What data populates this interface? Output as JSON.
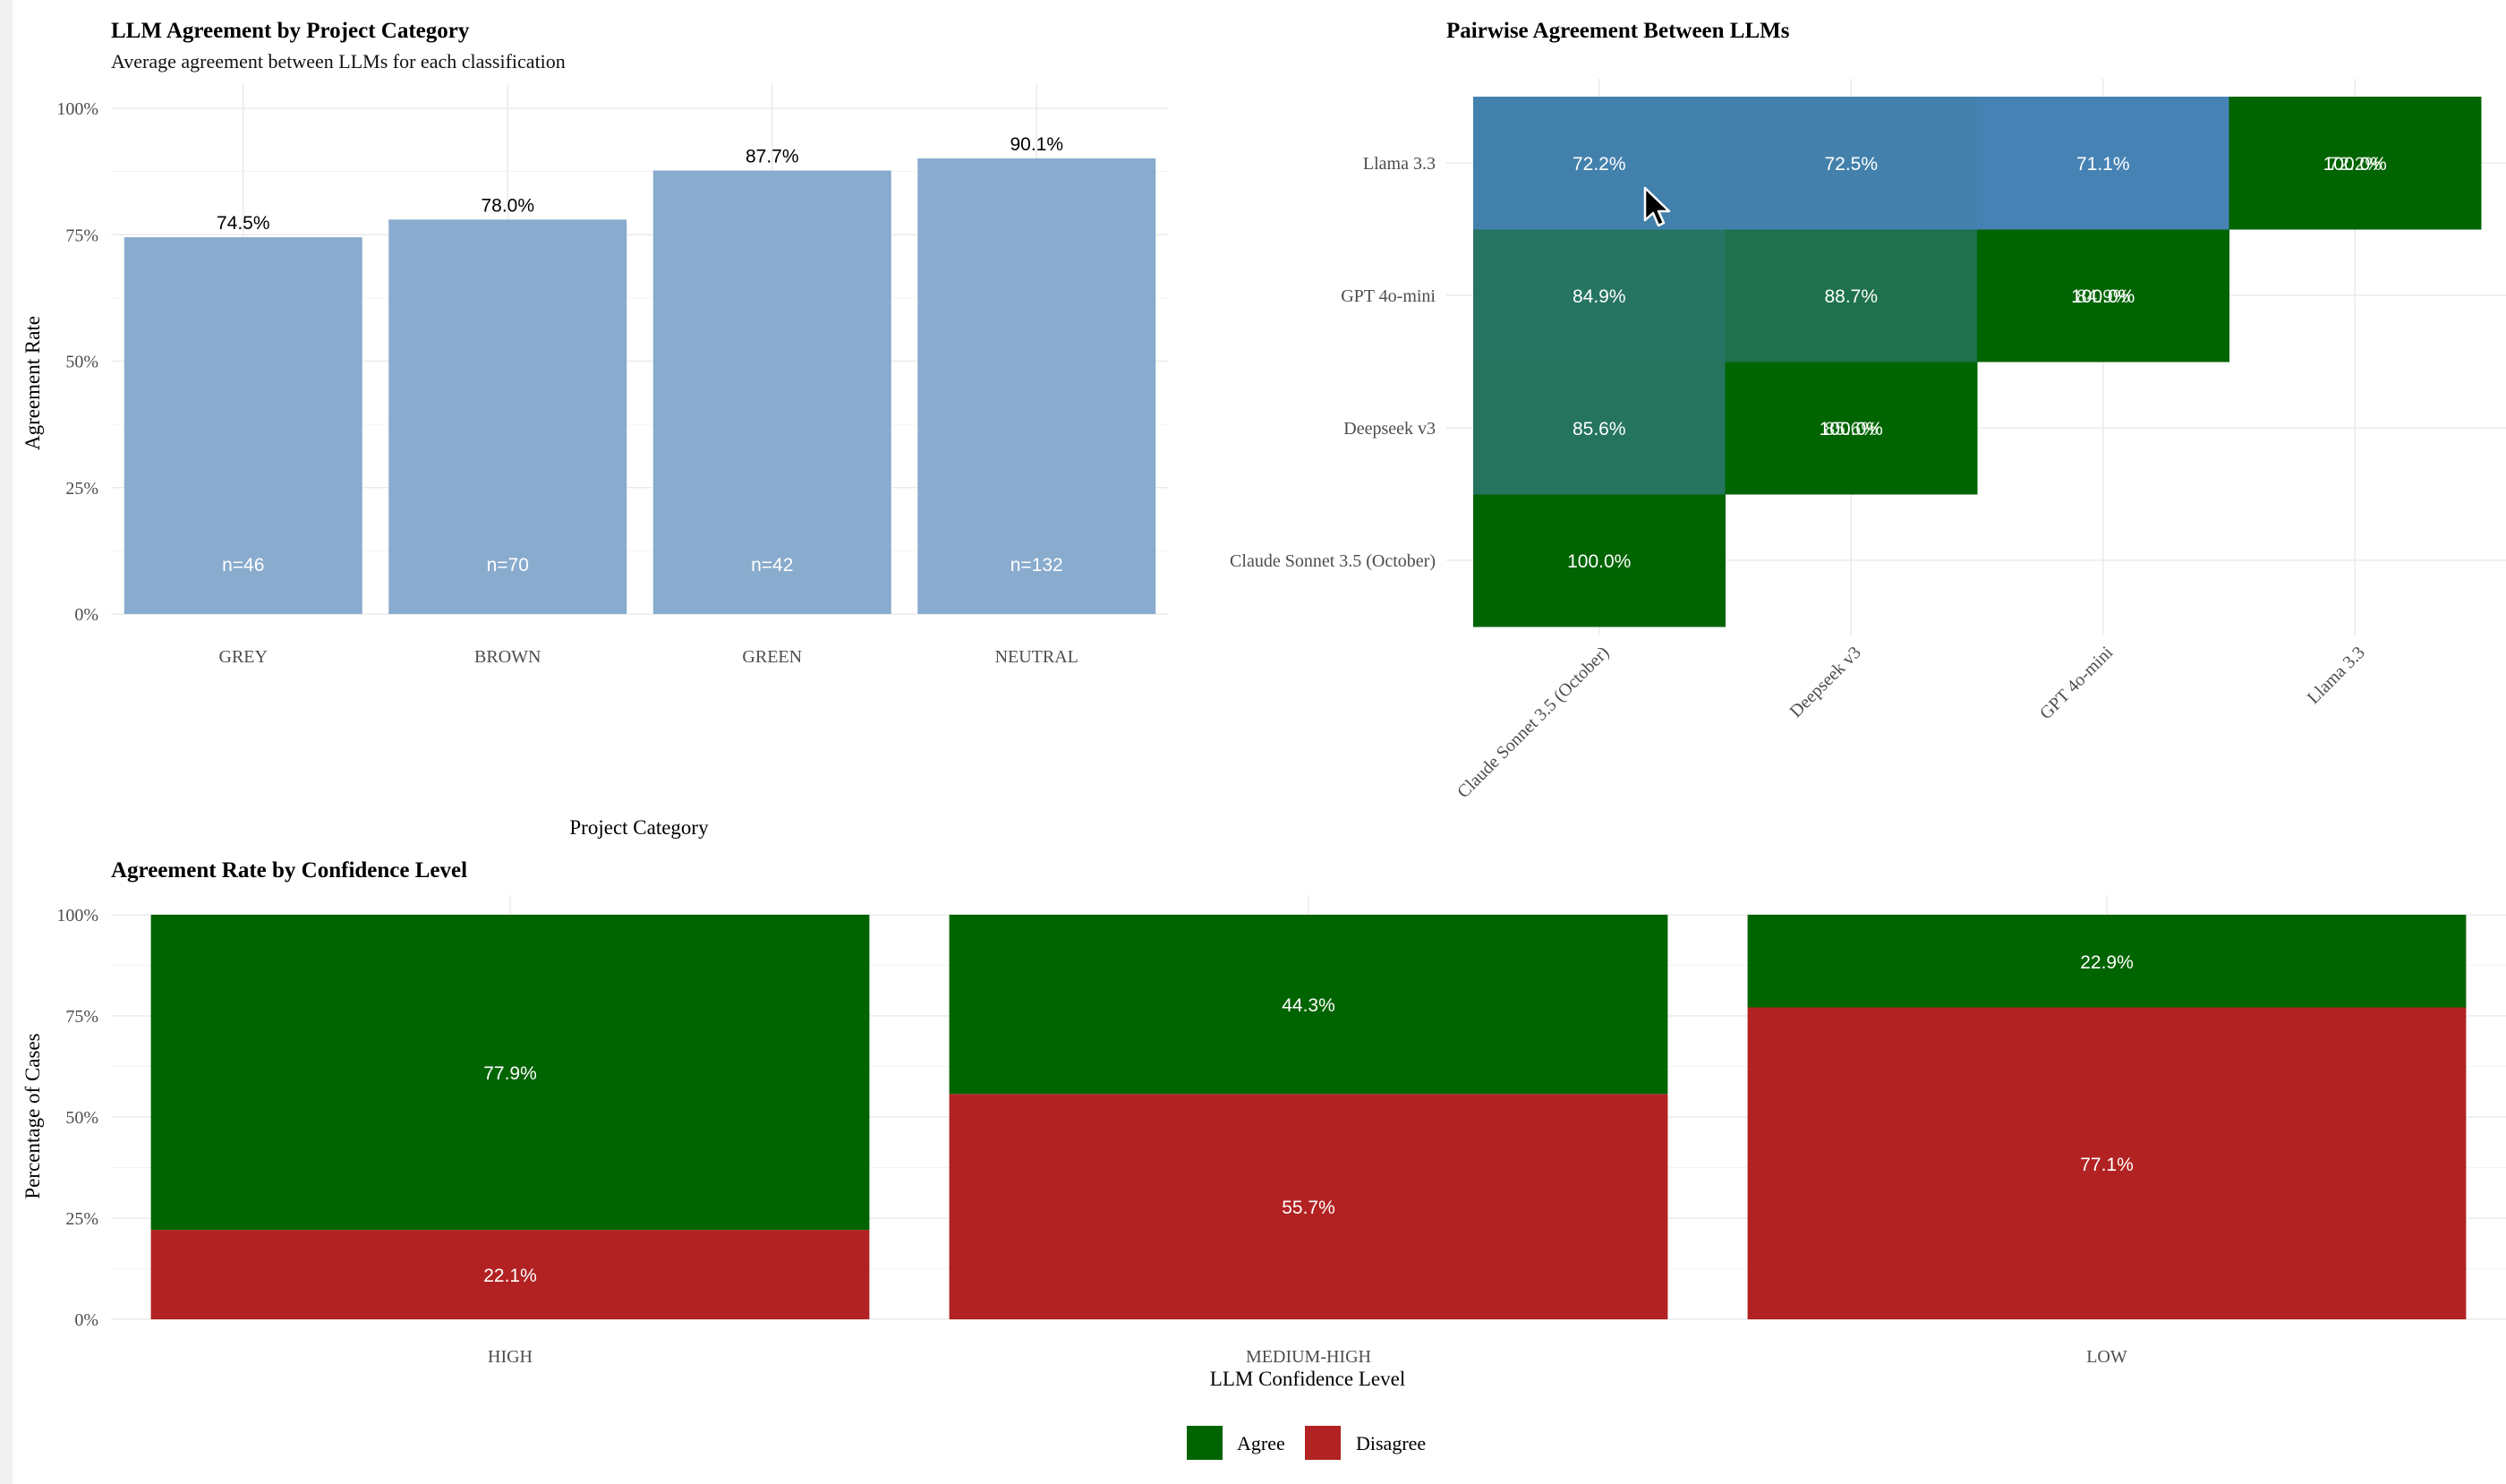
{
  "chart_data": [
    {
      "type": "bar",
      "title": "LLM Agreement by Project Category",
      "subtitle": "Average agreement between LLMs for each classification",
      "xlabel": "Project Category",
      "ylabel": "Agreement Rate",
      "categories": [
        "GREY",
        "BROWN",
        "GREEN",
        "NEUTRAL"
      ],
      "values": [
        74.5,
        78.0,
        87.7,
        90.1
      ],
      "value_labels": [
        "74.5%",
        "78.0%",
        "87.7%",
        "90.1%"
      ],
      "n_labels": [
        "n=46",
        "n=70",
        "n=42",
        "n=132"
      ],
      "ylim": [
        0,
        100
      ],
      "yticks": [
        0,
        25,
        50,
        75,
        100
      ],
      "ytick_labels": [
        "0%",
        "25%",
        "50%",
        "75%",
        "100%"
      ],
      "bar_color": "#85a8cb",
      "grid": true
    },
    {
      "type": "heatmap",
      "title": "Pairwise Agreement Between LLMs",
      "x_categories": [
        "Claude Sonnet 3.5 (October)",
        "Deepseek v3",
        "GPT 4o-mini",
        "Llama 3.3"
      ],
      "y_categories": [
        "Claude Sonnet 3.5 (October)",
        "Deepseek v3",
        "GPT 4o-mini",
        "Llama 3.3"
      ],
      "cells": [
        {
          "x": 0,
          "y": 0,
          "value": 100.0,
          "label": "100.0%"
        },
        {
          "x": 0,
          "y": 1,
          "value": 85.6,
          "label": "85.6%"
        },
        {
          "x": 0,
          "y": 2,
          "value": 84.9,
          "label": "84.9%"
        },
        {
          "x": 0,
          "y": 3,
          "value": 72.2,
          "label": "72.2%"
        },
        {
          "x": 1,
          "y": 1,
          "value": 100.0,
          "label": "100.0%",
          "overlap_label": "85.6%"
        },
        {
          "x": 1,
          "y": 2,
          "value": 88.7,
          "label": "88.7%"
        },
        {
          "x": 1,
          "y": 3,
          "value": 72.5,
          "label": "72.5%"
        },
        {
          "x": 2,
          "y": 2,
          "value": 100.0,
          "label": "100.0%",
          "overlap_label": "84.9%"
        },
        {
          "x": 2,
          "y": 3,
          "value": 71.1,
          "label": "71.1%"
        },
        {
          "x": 3,
          "y": 3,
          "value": 100.0,
          "label": "100.0%",
          "overlap_label": "72.2%"
        }
      ],
      "color_low": "#4682b4",
      "color_high": "#006400",
      "grid": true
    },
    {
      "type": "bar",
      "stacked": true,
      "title": "Agreement Rate by Confidence Level",
      "xlabel": "LLM Confidence Level",
      "ylabel": "Percentage of Cases",
      "categories": [
        "HIGH",
        "MEDIUM-HIGH",
        "LOW"
      ],
      "series": [
        {
          "name": "Disagree",
          "values": [
            22.1,
            55.7,
            77.1
          ],
          "labels": [
            "22.1%",
            "55.7%",
            "77.1%"
          ],
          "color": "#b22222"
        },
        {
          "name": "Agree",
          "values": [
            77.9,
            44.3,
            22.9
          ],
          "labels": [
            "77.9%",
            "44.3%",
            "22.9%"
          ],
          "color": "#006400"
        }
      ],
      "ylim": [
        0,
        100
      ],
      "yticks": [
        0,
        25,
        50,
        75,
        100
      ],
      "ytick_labels": [
        "0%",
        "25%",
        "50%",
        "75%",
        "100%"
      ],
      "legend_entries": [
        "Agree",
        "Disagree"
      ],
      "legend_position": "bottom",
      "grid": true
    }
  ]
}
